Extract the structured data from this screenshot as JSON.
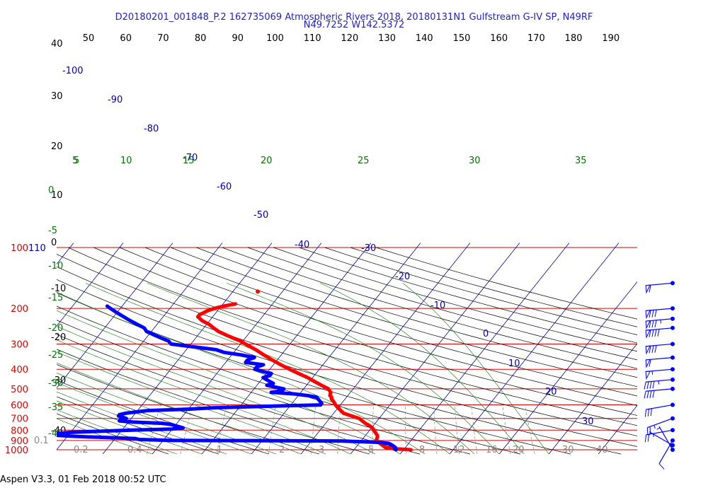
{
  "header": {
    "title_line1": "D20180201_001848_P.2 162735069 Atmospheric Rivers 2018, 20180131N1 Gulfstream G-IV SP, N49RF",
    "title_line2": "N49.7252 W142.5372"
  },
  "footer": {
    "text": "Aspen V3.3, 01 Feb 2018  00:52 UTC"
  },
  "chart_data": {
    "type": "line",
    "diagram": "skew-T log-P",
    "pressure_ticks": [
      "100",
      "200",
      "300",
      "400",
      "500",
      "600",
      "700",
      "800",
      "900",
      "1000"
    ],
    "pressure_ticks_extra": [
      "110"
    ],
    "top_ticks": [
      "50",
      "60",
      "70",
      "80",
      "90",
      "100",
      "110",
      "120",
      "130",
      "140",
      "150",
      "160",
      "170",
      "180",
      "190"
    ],
    "left_temp_ticks": [
      "40",
      "30",
      "20",
      "10",
      "0",
      "-10",
      "-20",
      "-30",
      "-40"
    ],
    "isotherm_labels": [
      "-100",
      "-90",
      "-80",
      "-70",
      "-60",
      "-50",
      "-40",
      "-30",
      "-20",
      "-10",
      "0",
      "10",
      "20",
      "30"
    ],
    "theta_e_labels": [
      "5",
      "10",
      "15",
      "20",
      "25",
      "30",
      "35"
    ],
    "dry_adiabat_labels": [
      "5",
      "0",
      "-5",
      "-10",
      "-15",
      "-20",
      "-25",
      "-30",
      "-35",
      "-40"
    ],
    "mixing_ratio_labels": [
      "0.1",
      "0.2",
      "0.4",
      "1",
      "2",
      "3",
      "5",
      "8",
      "12",
      "16",
      "20",
      "30",
      "40"
    ],
    "series": [
      {
        "name": "Temperature",
        "color": "#ff0000",
        "pressure": [
          1000,
          990,
          975,
          950,
          925,
          900,
          880,
          860,
          850,
          830,
          800,
          780,
          760,
          740,
          720,
          700,
          680,
          660,
          640,
          620,
          600,
          580,
          560,
          550,
          540,
          520,
          500,
          480,
          460,
          440,
          420,
          400,
          380,
          360,
          340,
          320,
          300,
          290,
          280,
          270,
          260,
          250,
          240,
          230,
          220,
          215,
          210,
          205,
          200,
          195,
          190
        ],
        "temperature": [
          11.5,
          8.5,
          6,
          5,
          4,
          3,
          2.8,
          2.6,
          2.4,
          1.8,
          0.8,
          0.2,
          -0.8,
          -2,
          -3,
          -4,
          -6,
          -8,
          -9,
          -10,
          -11,
          -11.8,
          -12.8,
          -13,
          -13.6,
          -14,
          -15,
          -17,
          -19,
          -21,
          -23.5,
          -26,
          -28.5,
          -31,
          -33.5,
          -36,
          -39,
          -40.5,
          -42.5,
          -44.5,
          -46.5,
          -48,
          -49.5,
          -51.5,
          -53,
          -53,
          -52.5,
          -52,
          -51,
          -49.5,
          -47.5
        ]
      },
      {
        "name": "Dew point",
        "color": "#0000ff",
        "pressure": [
          1000,
          990,
          975,
          950,
          930,
          920,
          905,
          900,
          890,
          880,
          860,
          850,
          840,
          820,
          800,
          790,
          780,
          770,
          760,
          750,
          740,
          730,
          720,
          710,
          700,
          690,
          680,
          670,
          660,
          650,
          640,
          630,
          620,
          610,
          600,
          590,
          580,
          570,
          560,
          550,
          540,
          530,
          520,
          510,
          500,
          490,
          480,
          470,
          460,
          450,
          440,
          430,
          420,
          410,
          400,
          390,
          380,
          370,
          360,
          350,
          340,
          330,
          320,
          310,
          300,
          290,
          280,
          270,
          260,
          250,
          240,
          230,
          220,
          210,
          200,
          195
        ],
        "dewpoint": [
          8.5,
          8,
          8,
          7,
          6,
          4,
          -4,
          -38,
          -45,
          -46,
          -58,
          -62,
          -64,
          -60,
          -48,
          -40,
          -38,
          -39,
          -40,
          -41,
          -43,
          -49,
          -52,
          -52,
          -51,
          -52,
          -53,
          -53,
          -52,
          -50,
          -48,
          -40,
          -35,
          -25,
          -14,
          -14,
          -14.5,
          -15,
          -15.5,
          -16,
          -18,
          -21,
          -26,
          -24,
          -24,
          -26,
          -28,
          -27,
          -28,
          -29,
          -30,
          -29,
          -29,
          -31,
          -33,
          -33,
          -32,
          -36,
          -36,
          -35,
          -38,
          -42,
          -44,
          -49,
          -54,
          -55,
          -57,
          -59,
          -61,
          -62,
          -64,
          -66,
          -68,
          -70,
          -72,
          -73
        ]
      }
    ],
    "isolated_temperature_point": {
      "pressure": 165,
      "temperature": -45
    },
    "wind_barbs": [
      {
        "pressure": 1000,
        "speed_kt": 5,
        "dir": 330
      },
      {
        "pressure": 950,
        "speed_kt": 5,
        "dir": 300
      },
      {
        "pressure": 900,
        "speed_kt": 10,
        "dir": 210
      },
      {
        "pressure": 800,
        "speed_kt": 25,
        "dir": 260
      },
      {
        "pressure": 700,
        "speed_kt": 25,
        "dir": 250
      },
      {
        "pressure": 600,
        "speed_kt": 30,
        "dir": 260
      },
      {
        "pressure": 500,
        "speed_kt": 40,
        "dir": 265
      },
      {
        "pressure": 450,
        "speed_kt": 45,
        "dir": 265
      },
      {
        "pressure": 400,
        "speed_kt": 55,
        "dir": 265
      },
      {
        "pressure": 350,
        "speed_kt": 60,
        "dir": 265
      },
      {
        "pressure": 300,
        "speed_kt": 80,
        "dir": 265
      },
      {
        "pressure": 250,
        "speed_kt": 90,
        "dir": 265
      },
      {
        "pressure": 225,
        "speed_kt": 85,
        "dir": 265
      },
      {
        "pressure": 200,
        "speed_kt": 80,
        "dir": 265
      },
      {
        "pressure": 150,
        "speed_kt": 60,
        "dir": 265
      }
    ],
    "colors": {
      "isobar": "#dd0000",
      "isotherm": "#0000aa",
      "dry_adiabat": "#000000",
      "moist_adiabat": "#007700",
      "mixing_ratio": "#888888",
      "axis_text": "#000000",
      "title": "#2222cc"
    }
  }
}
